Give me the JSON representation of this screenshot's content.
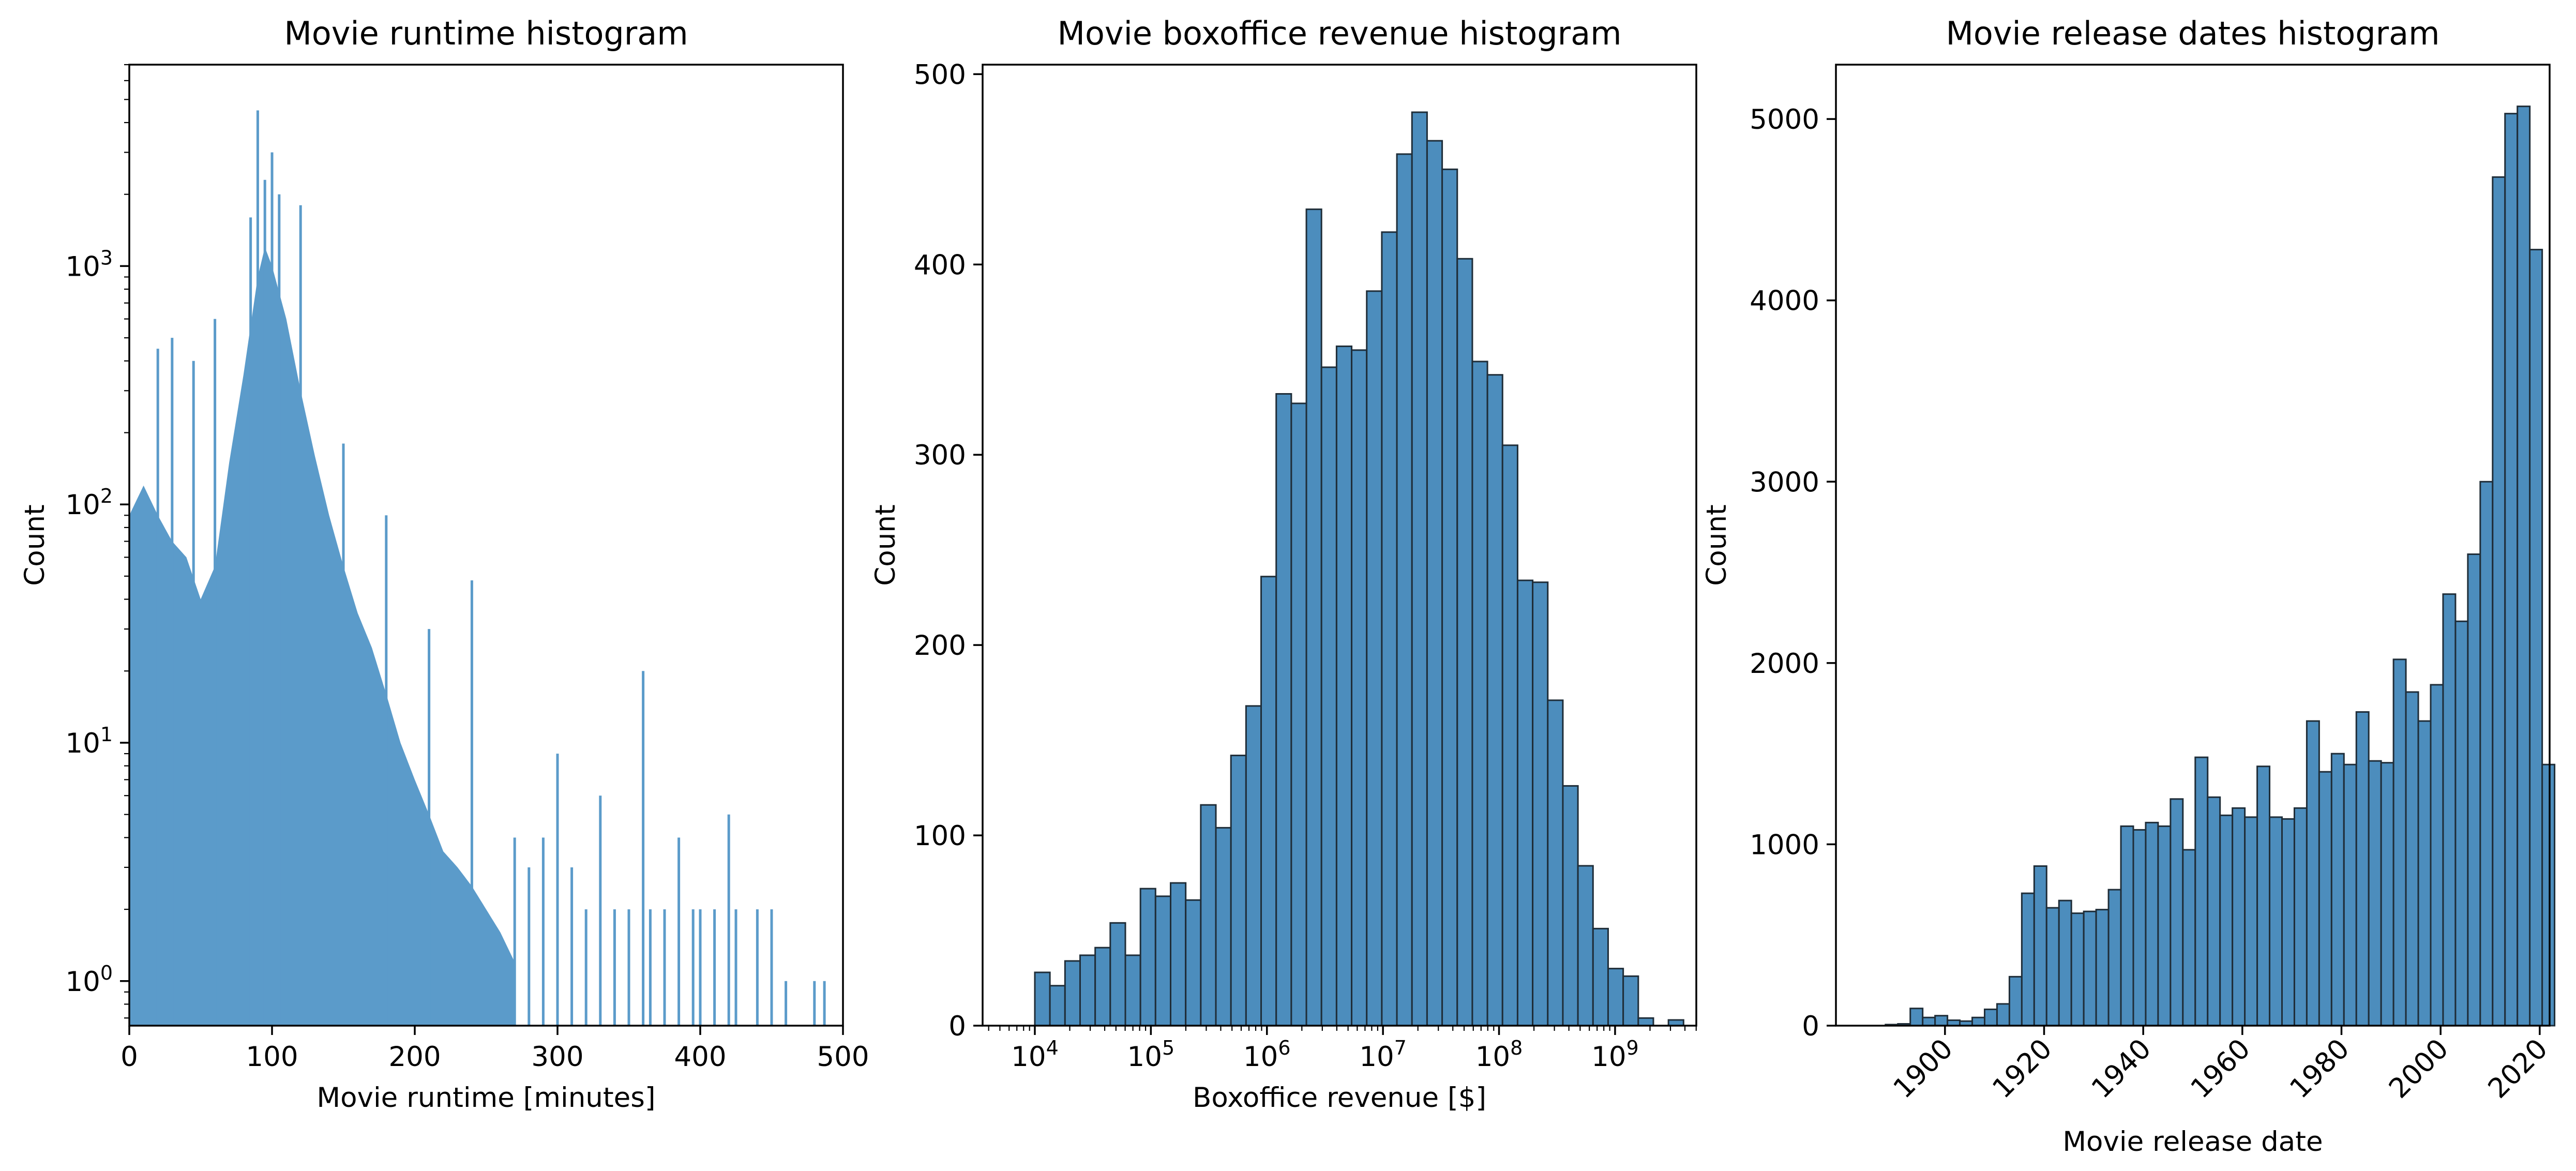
{
  "colors": {
    "bar_fill": "#4c8dbd",
    "bar_fill_light": "#5b9bca",
    "bar_edge": "#1f2d38",
    "axis": "#000000"
  },
  "chart_data": [
    {
      "type": "bar",
      "title": "Movie runtime histogram",
      "xlabel": "Movie runtime [minutes]",
      "ylabel": "Count",
      "xlim": [
        0,
        500
      ],
      "ylim": [
        0.65,
        7000
      ],
      "yscale": "log",
      "grid": false,
      "xticks": [
        "0",
        "100",
        "200",
        "300",
        "400",
        "500"
      ],
      "yticks": [
        {
          "base": "10",
          "exp": "0"
        },
        {
          "base": "10",
          "exp": "1"
        },
        {
          "base": "10",
          "exp": "2"
        },
        {
          "base": "10",
          "exp": "3"
        }
      ],
      "profile": {
        "x": [
          0,
          10,
          20,
          30,
          40,
          50,
          60,
          70,
          80,
          90,
          95,
          100,
          110,
          120,
          130,
          140,
          150,
          160,
          170,
          180,
          190,
          200,
          210,
          220,
          230,
          240,
          250,
          260,
          270
        ],
        "y": [
          90,
          120,
          90,
          70,
          60,
          40,
          55,
          150,
          350,
          900,
          1200,
          1000,
          600,
          300,
          160,
          90,
          55,
          35,
          25,
          16,
          10,
          7,
          5,
          3.5,
          3,
          2.5,
          2,
          1.6,
          1.2
        ]
      },
      "spikes": [
        {
          "x": 90,
          "y": 4500
        },
        {
          "x": 100,
          "y": 3000
        },
        {
          "x": 95,
          "y": 2300
        },
        {
          "x": 120,
          "y": 1800
        },
        {
          "x": 105,
          "y": 2000
        },
        {
          "x": 85,
          "y": 1600
        },
        {
          "x": 60,
          "y": 600
        },
        {
          "x": 30,
          "y": 500
        },
        {
          "x": 20,
          "y": 450
        },
        {
          "x": 45,
          "y": 400
        },
        {
          "x": 150,
          "y": 180
        },
        {
          "x": 180,
          "y": 90
        },
        {
          "x": 240,
          "y": 48
        },
        {
          "x": 210,
          "y": 30
        },
        {
          "x": 360,
          "y": 20
        },
        {
          "x": 300,
          "y": 9
        },
        {
          "x": 330,
          "y": 6
        },
        {
          "x": 420,
          "y": 5
        },
        {
          "x": 385,
          "y": 4
        },
        {
          "x": 270,
          "y": 4
        },
        {
          "x": 280,
          "y": 3
        },
        {
          "x": 290,
          "y": 4
        },
        {
          "x": 310,
          "y": 3
        },
        {
          "x": 320,
          "y": 2
        },
        {
          "x": 340,
          "y": 2
        },
        {
          "x": 350,
          "y": 2
        },
        {
          "x": 365,
          "y": 2
        },
        {
          "x": 375,
          "y": 2
        },
        {
          "x": 395,
          "y": 2
        },
        {
          "x": 400,
          "y": 2
        },
        {
          "x": 410,
          "y": 2
        },
        {
          "x": 425,
          "y": 2
        },
        {
          "x": 440,
          "y": 2
        },
        {
          "x": 450,
          "y": 2
        },
        {
          "x": 460,
          "y": 1
        },
        {
          "x": 480,
          "y": 1
        },
        {
          "x": 487,
          "y": 1
        }
      ]
    },
    {
      "type": "bar",
      "title": "Movie boxoffice revenue histogram",
      "xlabel": "Boxoffice revenue [$]",
      "ylabel": "Count",
      "xscale": "log",
      "xlim": [
        3.55,
        9.7
      ],
      "ylim": [
        0,
        505
      ],
      "grid": false,
      "xticks": [
        {
          "base": "10",
          "exp": "4",
          "value": 4
        },
        {
          "base": "10",
          "exp": "5",
          "value": 5
        },
        {
          "base": "10",
          "exp": "6",
          "value": 6
        },
        {
          "base": "10",
          "exp": "7",
          "value": 7
        },
        {
          "base": "10",
          "exp": "8",
          "value": 8
        },
        {
          "base": "10",
          "exp": "9",
          "value": 9
        }
      ],
      "yticks": [
        0,
        100,
        200,
        300,
        400,
        500
      ],
      "bin_start_log10": 4.0,
      "bin_width_log10": 0.13,
      "values": [
        28,
        21,
        34,
        37,
        41,
        54,
        37,
        72,
        68,
        75,
        66,
        116,
        104,
        142,
        168,
        236,
        332,
        327,
        429,
        346,
        357,
        355,
        386,
        417,
        458,
        480,
        465,
        450,
        403,
        349,
        342,
        305,
        234,
        233,
        171,
        126,
        84,
        51,
        30,
        26,
        4,
        0,
        3
      ]
    },
    {
      "type": "bar",
      "title": "Movie release dates histogram",
      "xlabel": "Movie release date",
      "ylabel": "Count",
      "xlim": [
        1878,
        2022
      ],
      "ylim": [
        0,
        5300
      ],
      "grid": false,
      "xticks": [
        "1900",
        "1920",
        "1940",
        "1960",
        "1980",
        "2000",
        "2020"
      ],
      "xtick_rotation": 45,
      "yticks": [
        0,
        1000,
        2000,
        3000,
        4000,
        5000
      ],
      "bin_start": 1888,
      "bin_width": 2.5,
      "values": [
        6,
        10,
        95,
        45,
        55,
        30,
        25,
        45,
        90,
        120,
        270,
        730,
        880,
        650,
        690,
        620,
        630,
        640,
        750,
        1100,
        1080,
        1120,
        1100,
        1250,
        970,
        1480,
        1260,
        1160,
        1200,
        1150,
        1430,
        1150,
        1140,
        1200,
        1680,
        1400,
        1500,
        1440,
        1730,
        1460,
        1450,
        2020,
        1840,
        1680,
        1880,
        2380,
        2230,
        2600,
        3000,
        4680,
        5030,
        5070,
        4280,
        1440
      ]
    }
  ]
}
